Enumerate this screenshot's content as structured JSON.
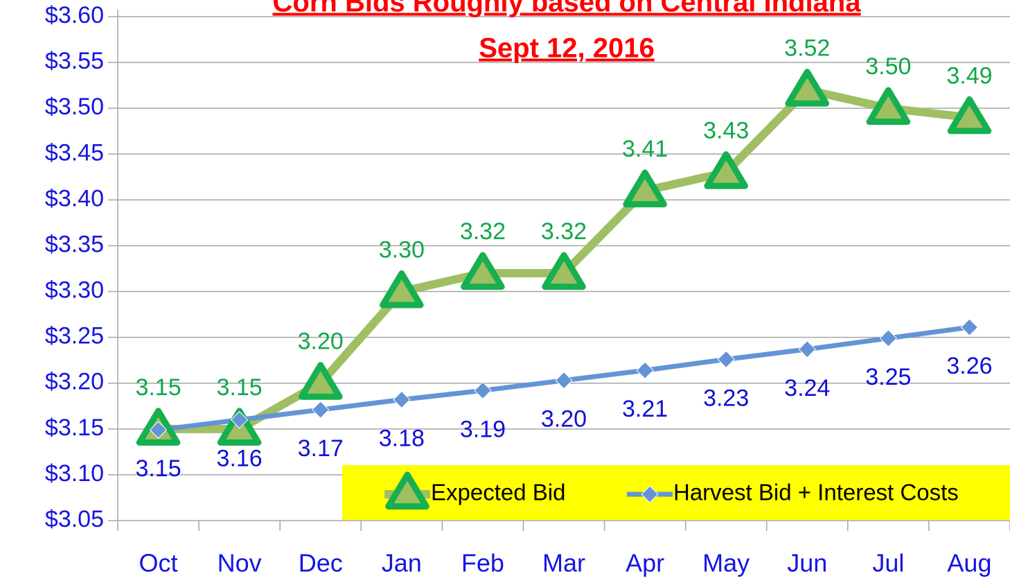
{
  "chart_data": {
    "type": "line",
    "title": [
      "Corn Bids Roughly based on Central Indiana",
      "Sept 12, 2016"
    ],
    "categories": [
      "Oct",
      "Nov",
      "Dec",
      "Jan",
      "Feb",
      "Mar",
      "Apr",
      "May",
      "Jun",
      "Jul",
      "Aug"
    ],
    "series": [
      {
        "name": "Expected Bid",
        "color": "#a0bf63",
        "marker": "triangle",
        "marker_color": "#16b050",
        "label_color": "#10a84a",
        "label_position": "above",
        "values": [
          3.15,
          3.15,
          3.2,
          3.3,
          3.32,
          3.32,
          3.41,
          3.43,
          3.52,
          3.5,
          3.49
        ],
        "value_labels": [
          "3.15",
          "3.15",
          "3.20",
          "3.30",
          "3.32",
          "3.32",
          "3.41",
          "3.43",
          "3.52",
          "3.50",
          "3.49"
        ]
      },
      {
        "name": "Harvest Bid + Interest Costs",
        "color": "#6394d6",
        "marker": "diamond",
        "marker_color": "#6394d6",
        "label_color": "#1010d8",
        "label_position": "below",
        "values": [
          3.149,
          3.16,
          3.171,
          3.182,
          3.192,
          3.203,
          3.214,
          3.226,
          3.237,
          3.249,
          3.261
        ],
        "value_labels": [
          "3.15",
          "3.16",
          "3.17",
          "3.18",
          "3.19",
          "3.20",
          "3.21",
          "3.23",
          "3.24",
          "3.25",
          "3.26"
        ]
      }
    ],
    "ylim": [
      3.05,
      3.6
    ],
    "yticks": [
      {
        "value": 3.05,
        "label": "$3.05"
      },
      {
        "value": 3.1,
        "label": "$3.10"
      },
      {
        "value": 3.15,
        "label": "$3.15"
      },
      {
        "value": 3.2,
        "label": "$3.20"
      },
      {
        "value": 3.25,
        "label": "$3.25"
      },
      {
        "value": 3.3,
        "label": "$3.30"
      },
      {
        "value": 3.35,
        "label": "$3.35"
      },
      {
        "value": 3.4,
        "label": "$3.40"
      },
      {
        "value": 3.45,
        "label": "$3.45"
      },
      {
        "value": 3.5,
        "label": "$3.50"
      },
      {
        "value": 3.55,
        "label": "$3.55"
      },
      {
        "value": 3.6,
        "label": "$3.60"
      }
    ],
    "grid": true,
    "legend": "lower right",
    "legend_background": "#ffff00",
    "title_color": "#ff0000",
    "axis_label_color": "#1515e0"
  }
}
